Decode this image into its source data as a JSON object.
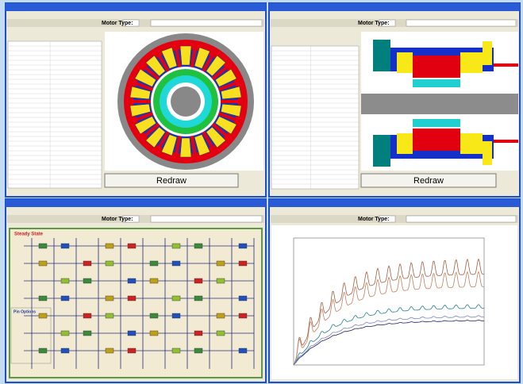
{
  "windows": [
    {
      "toolbar_label": "Motor Type:",
      "button": "Redraw"
    },
    {
      "toolbar_label": "Motor Type:",
      "button": "Redraw"
    },
    {
      "toolbar_label": "Motor Type:",
      "panel_title": "Steady State",
      "legend_title": "Pin Options"
    },
    {
      "toolbar_label": "Motor Type:"
    }
  ]
}
